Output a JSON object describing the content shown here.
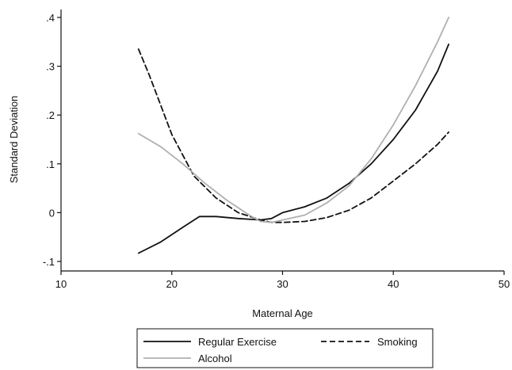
{
  "chart_data": {
    "type": "line",
    "xlabel": "Maternal Age",
    "ylabel": "Standard Deviation",
    "xlim": [
      10,
      50
    ],
    "ylim": [
      -0.1,
      0.4
    ],
    "x_ticks": [
      "10",
      "20",
      "30",
      "40",
      "50"
    ],
    "y_ticks": [
      "-.1",
      "0",
      ".1",
      ".2",
      ".3",
      ".4"
    ],
    "grid": false,
    "legend_position": "bottom",
    "series": [
      {
        "name": "Regular Exercise",
        "color": "#111111",
        "dash": "solid",
        "x": [
          17,
          19,
          21,
          22.5,
          24,
          26,
          28,
          29,
          30,
          32,
          34,
          36,
          38,
          40,
          42,
          44,
          45
        ],
        "y": [
          -0.083,
          -0.06,
          -0.03,
          -0.008,
          -0.008,
          -0.012,
          -0.015,
          -0.012,
          0.0,
          0.012,
          0.03,
          0.06,
          0.1,
          0.15,
          0.21,
          0.29,
          0.345
        ]
      },
      {
        "name": "Smoking",
        "color": "#111111",
        "dash": "dashed",
        "x": [
          17,
          18,
          20,
          22,
          24,
          26,
          28,
          29,
          30,
          32,
          34,
          36,
          38,
          40,
          42,
          44,
          45
        ],
        "y": [
          0.335,
          0.28,
          0.16,
          0.075,
          0.03,
          0.0,
          -0.015,
          -0.02,
          -0.02,
          -0.018,
          -0.01,
          0.005,
          0.03,
          0.065,
          0.1,
          0.14,
          0.165
        ]
      },
      {
        "name": "Alcohol",
        "color": "#b0b0b0",
        "dash": "solid",
        "x": [
          17,
          19,
          21,
          23,
          25,
          27,
          28,
          29,
          30,
          32,
          34,
          36,
          38,
          40,
          42,
          44,
          45
        ],
        "y": [
          0.162,
          0.135,
          0.1,
          0.06,
          0.025,
          -0.005,
          -0.018,
          -0.02,
          -0.015,
          -0.005,
          0.02,
          0.055,
          0.11,
          0.18,
          0.26,
          0.35,
          0.4
        ]
      }
    ]
  }
}
